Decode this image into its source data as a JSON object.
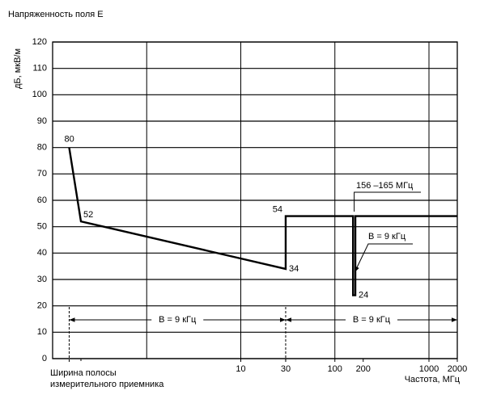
{
  "chart_data": {
    "type": "line",
    "title": "Напряженность поля E",
    "y_label": "дБ, мкВ/м",
    "x_label": "Частота, МГц",
    "x_note": "Ширина полосы измерительного приемника",
    "x": [
      0.15,
      0.2,
      30,
      30,
      156,
      156,
      165,
      165,
      2000
    ],
    "series": [
      {
        "name": "E",
        "color": "#000000",
        "values": [
          80,
          52,
          34,
          54,
          54,
          24,
          24,
          54,
          54
        ]
      }
    ],
    "log_x": true,
    "xlim": [
      0.1,
      2000
    ],
    "xticks": [
      10,
      30,
      100,
      200,
      1000,
      2000
    ],
    "xgrid": [
      1,
      10,
      100,
      1000
    ],
    "ylim": [
      0,
      120
    ],
    "yticks": [
      0,
      10,
      20,
      30,
      40,
      50,
      60,
      70,
      80,
      90,
      100,
      110,
      120
    ],
    "grid": true,
    "annotations": [
      "156 –165 МГц",
      "B = 9 кГц",
      "B = 9 кГц",
      "B = 9 кГц"
    ]
  }
}
